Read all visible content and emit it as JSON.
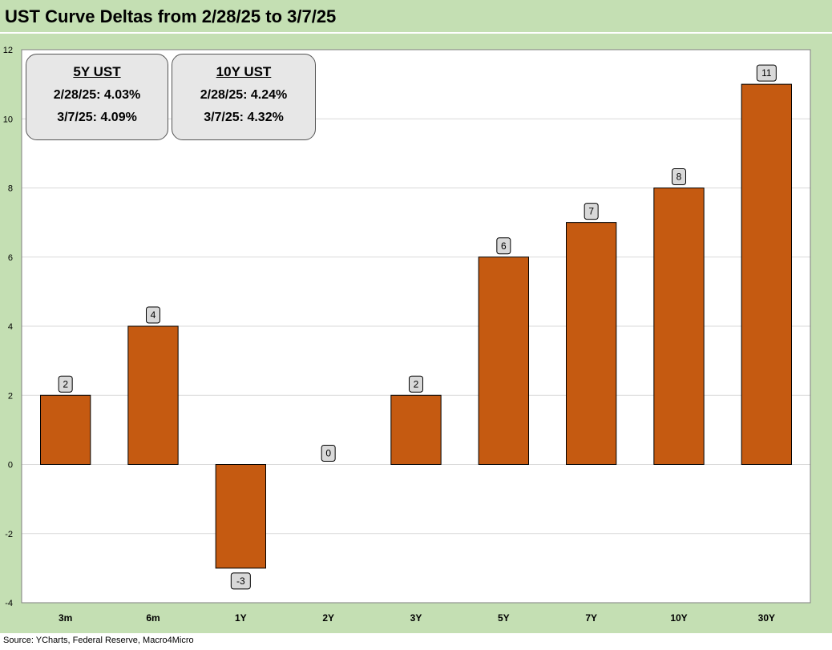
{
  "title": "UST Curve Deltas from 2/28/25 to 3/7/25",
  "source": "Source: YCharts, Federal Reserve, Macro4Micro",
  "info_boxes": [
    {
      "header": "5Y UST",
      "line1": "2/28/25: 4.03%",
      "line2": "3/7/25: 4.09%"
    },
    {
      "header": "10Y UST",
      "line1": "2/28/25: 4.24%",
      "line2": "3/7/25: 4.32%"
    }
  ],
  "colors": {
    "bar": "#c55a11",
    "background": "#c4dfb3",
    "plot": "#ffffff",
    "grid": "#d9d9d9",
    "label_box": "#d9d9d9"
  },
  "chart_data": {
    "type": "bar",
    "title": "UST Curve Deltas from 2/28/25 to 3/7/25",
    "xlabel": "",
    "ylabel": "",
    "categories": [
      "3m",
      "6m",
      "1Y",
      "2Y",
      "3Y",
      "5Y",
      "7Y",
      "10Y",
      "30Y"
    ],
    "values": [
      2,
      4,
      -3,
      0,
      2,
      6,
      7,
      8,
      11
    ],
    "ylim": [
      -4,
      12
    ],
    "yticks": [
      -4,
      -2,
      0,
      2,
      4,
      6,
      8,
      10,
      12
    ],
    "grid": true,
    "legend": "none",
    "data_labels": true
  }
}
